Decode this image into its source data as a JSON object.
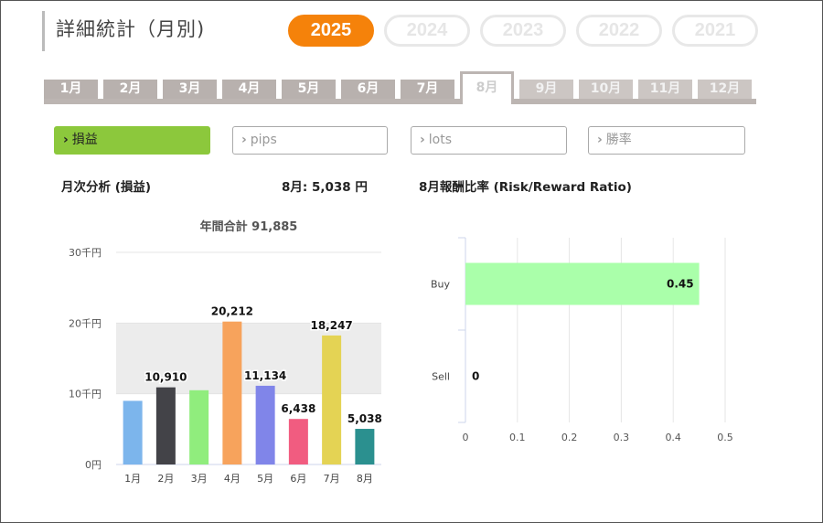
{
  "page": {
    "title": "詳細統計（月別)",
    "years": [
      {
        "label": "2025",
        "active": true
      },
      {
        "label": "2024",
        "active": false
      },
      {
        "label": "2023",
        "active": false
      },
      {
        "label": "2022",
        "active": false
      },
      {
        "label": "2021",
        "active": false
      }
    ],
    "months": [
      {
        "label": "1月",
        "state": "past"
      },
      {
        "label": "2月",
        "state": "past"
      },
      {
        "label": "3月",
        "state": "past"
      },
      {
        "label": "4月",
        "state": "past"
      },
      {
        "label": "5月",
        "state": "past"
      },
      {
        "label": "6月",
        "state": "past"
      },
      {
        "label": "7月",
        "state": "past"
      },
      {
        "label": "8月",
        "state": "active"
      },
      {
        "label": "9月",
        "state": "future"
      },
      {
        "label": "10月",
        "state": "future"
      },
      {
        "label": "11月",
        "state": "future"
      },
      {
        "label": "12月",
        "state": "future"
      }
    ],
    "metrics": [
      {
        "label": "損益",
        "active": true
      },
      {
        "label": "pips",
        "active": false
      },
      {
        "label": "lots",
        "active": false
      },
      {
        "label": "勝率",
        "active": false
      }
    ],
    "chevron": "›",
    "monthly_heading": "月次分析 (損益)",
    "month_summary": "8月:  5,038 円",
    "ratio_heading": "8月報酬比率 (Risk/Reward Ratio)",
    "annual_total_label": "年間合計 91,885"
  },
  "colors": {
    "accent": "#f5820a",
    "active_metric": "#8cc83c",
    "month_tab": "#b8b1ae",
    "band": "#ececec"
  },
  "chart_data": [
    {
      "type": "bar",
      "title": "年間合計 91,885",
      "categories": [
        "1月",
        "2月",
        "3月",
        "4月",
        "5月",
        "6月",
        "7月",
        "8月"
      ],
      "values": [
        9000,
        10910,
        10500,
        20212,
        11134,
        6438,
        18247,
        5038
      ],
      "labels": [
        "",
        "10,910",
        "",
        "20,212",
        "11,134",
        "6,438",
        "18,247",
        "5,038"
      ],
      "colors": [
        "#7cb5ec",
        "#434348",
        "#90ed7d",
        "#f7a35c",
        "#8085e9",
        "#f15c80",
        "#e4d354",
        "#2b908f"
      ],
      "yticks": [
        {
          "value": 0,
          "label": "0円"
        },
        {
          "value": 10000,
          "label": "10千円"
        },
        {
          "value": 20000,
          "label": "20千円"
        },
        {
          "value": 30000,
          "label": "30千円"
        }
      ],
      "ylim": [
        0,
        30000
      ],
      "grid": true
    },
    {
      "type": "bar",
      "orientation": "horizontal",
      "categories": [
        "Buy",
        "Sell"
      ],
      "values": [
        0.45,
        0
      ],
      "labels": [
        "0.45",
        "0"
      ],
      "colors": [
        "#aaffaa",
        "#aaffaa"
      ],
      "xticks": [
        "0",
        "0.1",
        "0.2",
        "0.3",
        "0.4",
        "0.5"
      ],
      "xlim": [
        0,
        0.5
      ],
      "grid": true
    }
  ]
}
